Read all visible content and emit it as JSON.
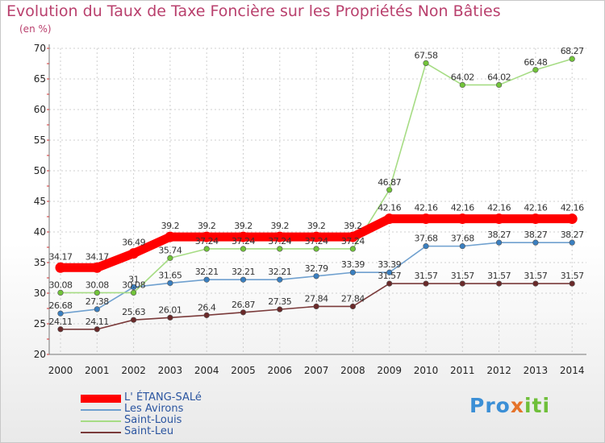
{
  "title": "Evolution du Taux de Taxe Foncière sur les Propriétés Non Bâties",
  "subtitle": "(en %)",
  "logo": {
    "p1": "Pro",
    "p2": "x",
    "p3": "iti"
  },
  "chart_data": {
    "type": "line",
    "x": [
      "2000",
      "2001",
      "2002",
      "2003",
      "2004",
      "2005",
      "2006",
      "2007",
      "2008",
      "2009",
      "2010",
      "2011",
      "2012",
      "2013",
      "2014"
    ],
    "ylim": [
      20,
      70
    ],
    "yticks": [
      20,
      25,
      30,
      35,
      40,
      45,
      50,
      55,
      60,
      65,
      70
    ],
    "grid": true,
    "legend_position": "bottom-left",
    "series": [
      {
        "name": "L' ÉTANG-SALé",
        "color": "#ff0000",
        "point_color": "#ff0000",
        "thick": true,
        "values": [
          34.17,
          34.17,
          36.49,
          39.2,
          39.2,
          39.2,
          39.2,
          39.2,
          39.2,
          42.16,
          42.16,
          42.16,
          42.16,
          42.16,
          42.16
        ],
        "labels": [
          "34.17",
          "34.17",
          "36.49",
          "39.2",
          "39.2",
          "39.2",
          "39.2",
          "39.2",
          "39.2",
          "42.16",
          "42.16",
          "42.16",
          "42.16",
          "42.16",
          "42.16"
        ]
      },
      {
        "name": "Les Avirons",
        "color": "#6fa0cf",
        "point_color": "#3a7fc0",
        "thick": false,
        "values": [
          26.68,
          27.38,
          31,
          31.65,
          32.21,
          32.21,
          32.21,
          32.79,
          33.39,
          33.39,
          37.68,
          37.68,
          38.27,
          38.27,
          38.27
        ],
        "labels": [
          "26.68",
          "27.38",
          "31",
          "31.65",
          "32.21",
          "32.21",
          "32.21",
          "32.79",
          "33.39",
          "33.39",
          "37.68",
          "37.68",
          "38.27",
          "38.27",
          "38.27"
        ]
      },
      {
        "name": "Saint-Louis",
        "color": "#a6dc84",
        "point_color": "#72c43a",
        "thick": false,
        "values": [
          30.08,
          30.08,
          30.08,
          35.74,
          37.24,
          37.24,
          37.24,
          37.24,
          37.24,
          46.87,
          67.58,
          64.02,
          64.02,
          66.48,
          68.27
        ],
        "labels": [
          "30.08",
          "30.08",
          "30.08",
          "35.74",
          "37.24",
          "37.24",
          "37.24",
          "37.24",
          "37.24",
          "46.87",
          "67.58",
          "64.02",
          "64.02",
          "66.48",
          "68.27"
        ]
      },
      {
        "name": "Saint-Leu",
        "color": "#7a3a3a",
        "point_color": "#6a2a2a",
        "thick": false,
        "values": [
          24.11,
          24.11,
          25.63,
          26.01,
          26.4,
          26.87,
          27.35,
          27.84,
          27.84,
          31.57,
          31.57,
          31.57,
          31.57,
          31.57,
          31.57
        ],
        "labels": [
          "24.11",
          "24.11",
          "25.63",
          "26.01",
          "26.4",
          "26.87",
          "27.35",
          "27.84",
          "27.84",
          "31.57",
          "31.57",
          "31.57",
          "31.57",
          "31.57",
          "31.57"
        ]
      }
    ]
  }
}
